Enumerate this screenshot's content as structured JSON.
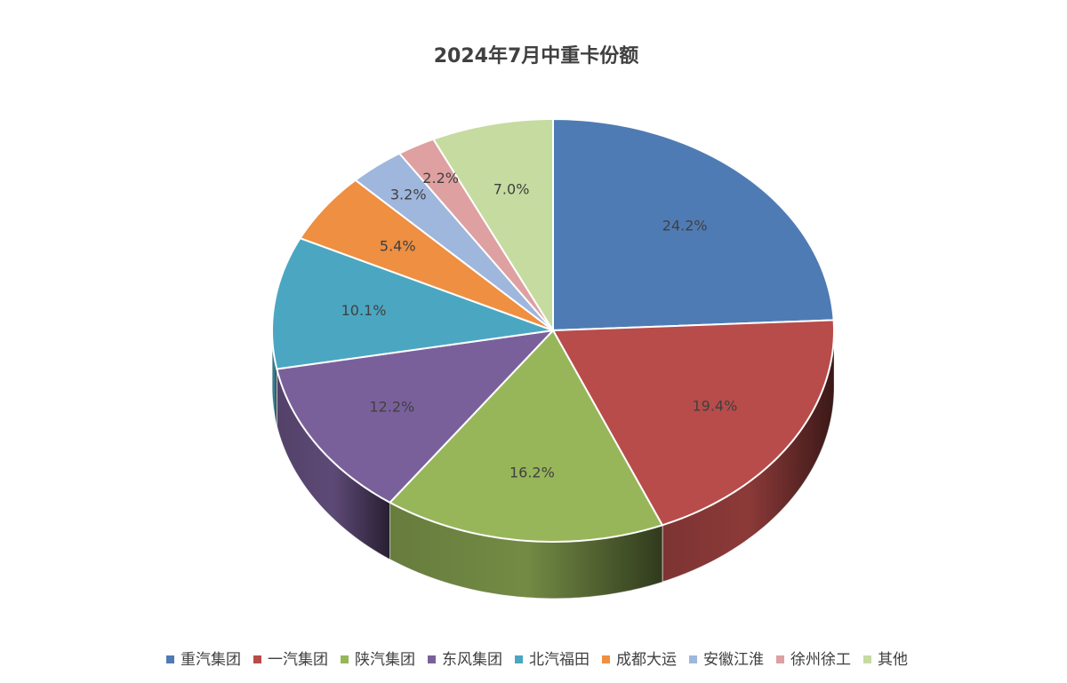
{
  "chart_data": {
    "type": "pie",
    "title": "2024年7月中重卡份额",
    "categories": [
      "重汽集团",
      "一汽集团",
      "陕汽集团",
      "东风集团",
      "北汽福田",
      "成都大运",
      "安徽江淮",
      "徐州徐工",
      "其他"
    ],
    "values": [
      24.2,
      19.4,
      16.2,
      12.2,
      10.1,
      5.4,
      3.2,
      2.2,
      7.0
    ],
    "value_labels": [
      "24.2%",
      "19.4%",
      "16.2%",
      "12.2%",
      "10.1%",
      "5.4%",
      "3.2%",
      "2.2%",
      "7.0%"
    ],
    "colors": [
      "#4f7bb5",
      "#b84c4a",
      "#97b65a",
      "#7a609b",
      "#4ba7c1",
      "#ee8f42",
      "#9fb6dd",
      "#dea0a0",
      "#c6dba0"
    ],
    "legend": "bottom"
  }
}
